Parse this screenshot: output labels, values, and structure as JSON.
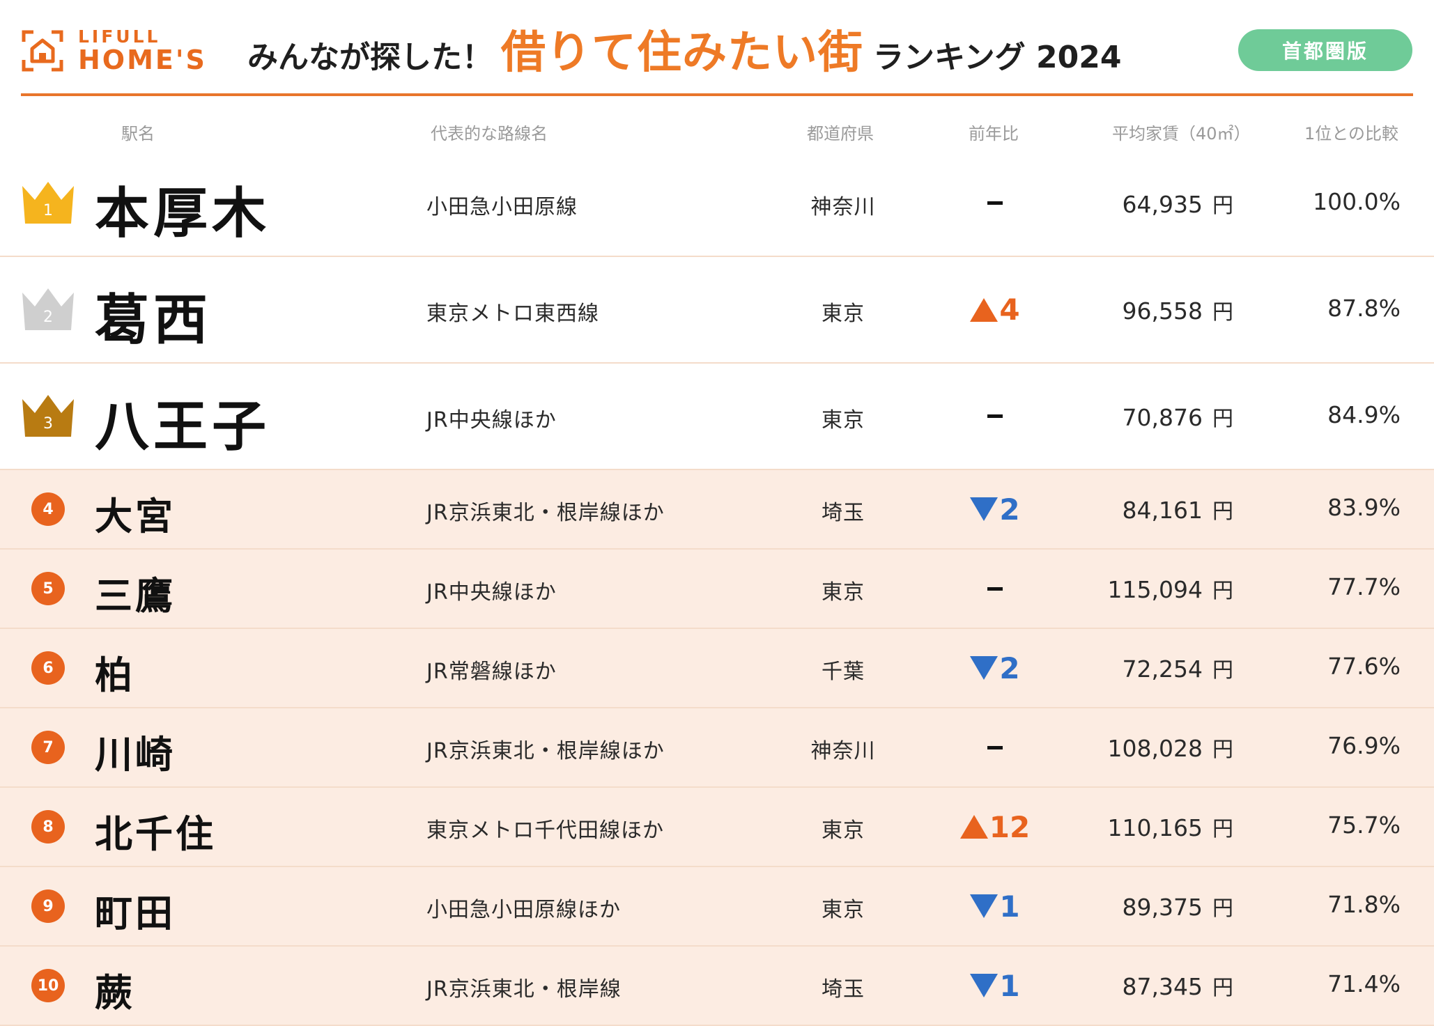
{
  "brand": {
    "logo_top": "LIFULL",
    "logo_bottom": "HOME'S",
    "color": "#e86a1e"
  },
  "title": {
    "prefix": "みんなが探した！",
    "highlight": "借りて住みたい街",
    "suffix": "ランキング 2024",
    "highlight_color": "#ee7a26"
  },
  "region_badge": "首都圏版",
  "columns": {
    "station": "駅名",
    "line": "代表的な路線名",
    "prefecture": "都道府県",
    "change": "前年比",
    "rent": "平均家賃（40㎡）",
    "ratio": "1位との比較"
  },
  "rent_unit": "円",
  "colors": {
    "up": "#e8631e",
    "down": "#2f6fc7",
    "gold": "#f5b41e",
    "silver": "#cfcfcf",
    "bronze": "#b87b12",
    "rest_bg": "#fcece2"
  },
  "rows": [
    {
      "rank": "1",
      "station": "本厚木",
      "line": "小田急小田原線",
      "prefecture": "神奈川",
      "change_dir": "none",
      "change": "",
      "rent": "64,935",
      "ratio": "100.0%",
      "crown": "gold"
    },
    {
      "rank": "2",
      "station": "葛西",
      "line": "東京メトロ東西線",
      "prefecture": "東京",
      "change_dir": "up",
      "change": "4",
      "rent": "96,558",
      "ratio": "87.8%",
      "crown": "silver"
    },
    {
      "rank": "3",
      "station": "八王子",
      "line": "JR中央線ほか",
      "prefecture": "東京",
      "change_dir": "none",
      "change": "",
      "rent": "70,876",
      "ratio": "84.9%",
      "crown": "bronze"
    },
    {
      "rank": "4",
      "station": "大宮",
      "line": "JR京浜東北・根岸線ほか",
      "prefecture": "埼玉",
      "change_dir": "down",
      "change": "2",
      "rent": "84,161",
      "ratio": "83.9%"
    },
    {
      "rank": "5",
      "station": "三鷹",
      "line": "JR中央線ほか",
      "prefecture": "東京",
      "change_dir": "none",
      "change": "",
      "rent": "115,094",
      "ratio": "77.7%"
    },
    {
      "rank": "6",
      "station": "柏",
      "line": "JR常磐線ほか",
      "prefecture": "千葉",
      "change_dir": "down",
      "change": "2",
      "rent": "72,254",
      "ratio": "77.6%"
    },
    {
      "rank": "7",
      "station": "川崎",
      "line": "JR京浜東北・根岸線ほか",
      "prefecture": "神奈川",
      "change_dir": "none",
      "change": "",
      "rent": "108,028",
      "ratio": "76.9%"
    },
    {
      "rank": "8",
      "station": "北千住",
      "line": "東京メトロ千代田線ほか",
      "prefecture": "東京",
      "change_dir": "up",
      "change": "12",
      "rent": "110,165",
      "ratio": "75.7%"
    },
    {
      "rank": "9",
      "station": "町田",
      "line": "小田急小田原線ほか",
      "prefecture": "東京",
      "change_dir": "down",
      "change": "1",
      "rent": "89,375",
      "ratio": "71.8%"
    },
    {
      "rank": "10",
      "station": "蕨",
      "line": "JR京浜東北・根岸線",
      "prefecture": "埼玉",
      "change_dir": "down",
      "change": "1",
      "rent": "87,345",
      "ratio": "71.4%"
    }
  ]
}
